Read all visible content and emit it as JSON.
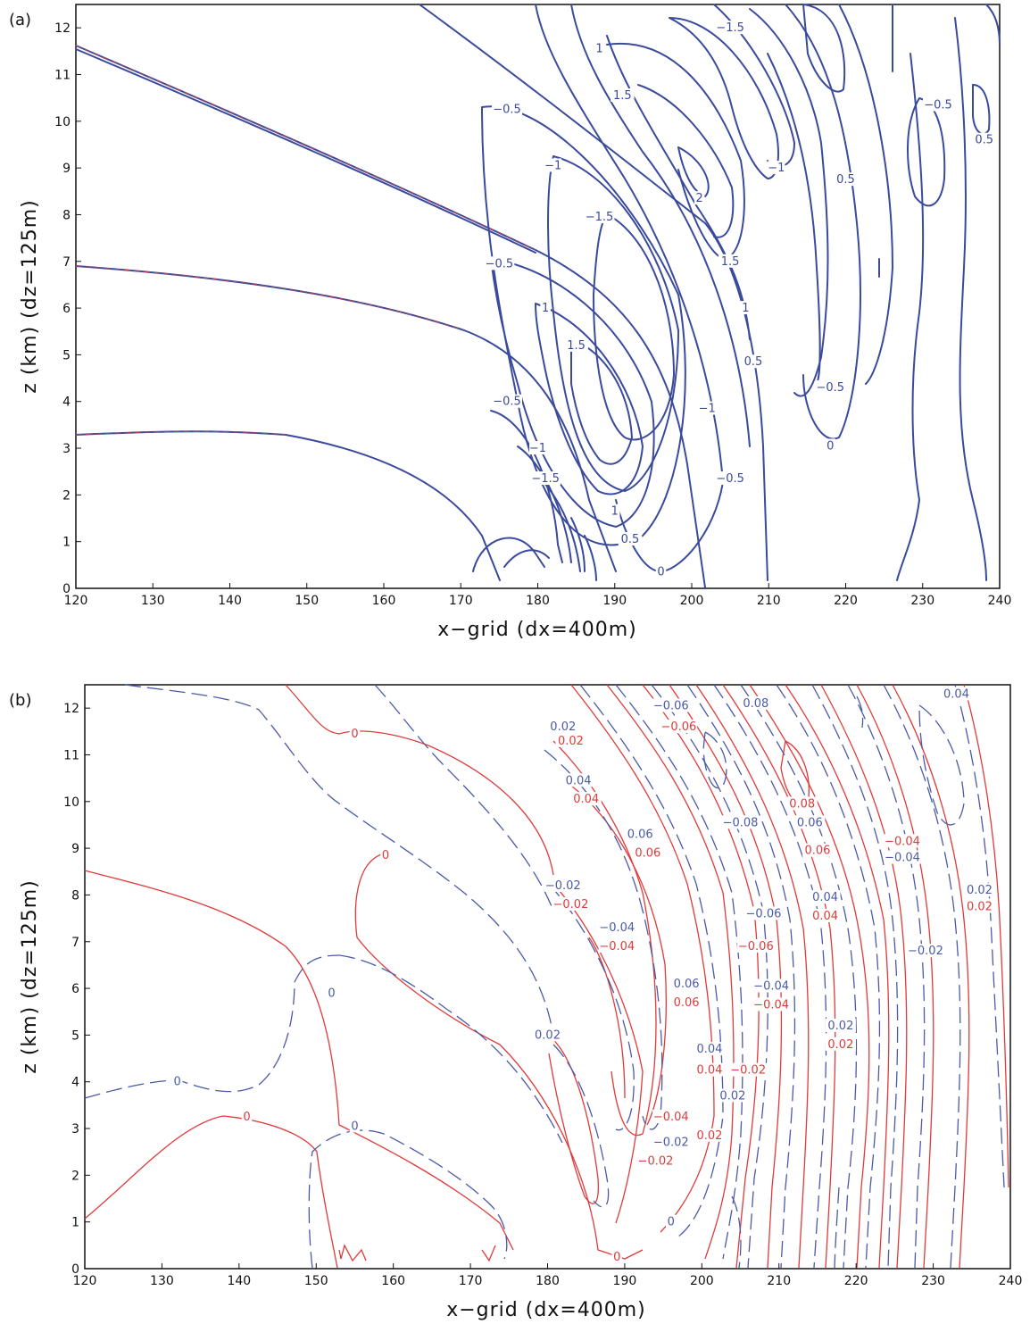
{
  "chart_data": [
    {
      "type": "contour",
      "panel_label": "(a)",
      "xlabel": "x−grid (dx=400m)",
      "ylabel": "z (km) (dz=125m)",
      "xlim": [
        120,
        240
      ],
      "ylim": [
        0,
        12.5
      ],
      "xticks": [
        120,
        130,
        140,
        150,
        160,
        170,
        180,
        190,
        200,
        210,
        220,
        230,
        240
      ],
      "yticks": [
        0,
        1,
        2,
        3,
        4,
        5,
        6,
        7,
        8,
        9,
        10,
        11,
        12
      ],
      "colors": {
        "solid": "#3a4a9c",
        "overlay_red": "#e03a3a",
        "overlay_green": "#3aa060"
      },
      "contour_labels": [
        {
          "x": 196,
          "y": 0.35,
          "text": "0"
        },
        {
          "x": 218,
          "y": 3.05,
          "text": "0"
        },
        {
          "x": 192,
          "y": 1.05,
          "text": "0.5"
        },
        {
          "x": 190,
          "y": 1.65,
          "text": "1"
        },
        {
          "x": 185,
          "y": 5.2,
          "text": "1.5"
        },
        {
          "x": 176,
          "y": 4.0,
          "text": "−0.5"
        },
        {
          "x": 175,
          "y": 6.95,
          "text": "−0.5"
        },
        {
          "x": 176,
          "y": 10.25,
          "text": "−0.5"
        },
        {
          "x": 180,
          "y": 3.0,
          "text": "−1"
        },
        {
          "x": 182,
          "y": 9.05,
          "text": "−1"
        },
        {
          "x": 181,
          "y": 2.35,
          "text": "−1.5"
        },
        {
          "x": 188,
          "y": 7.95,
          "text": "−1.5"
        },
        {
          "x": 181,
          "y": 6.0,
          "text": "1"
        },
        {
          "x": 191,
          "y": 10.55,
          "text": "1.5"
        },
        {
          "x": 188,
          "y": 11.55,
          "text": "1"
        },
        {
          "x": 201,
          "y": 8.35,
          "text": "2"
        },
        {
          "x": 205,
          "y": 7.0,
          "text": "1.5"
        },
        {
          "x": 207,
          "y": 6.0,
          "text": "1"
        },
        {
          "x": 208,
          "y": 4.85,
          "text": "0.5"
        },
        {
          "x": 202,
          "y": 3.85,
          "text": "−1"
        },
        {
          "x": 205,
          "y": 2.35,
          "text": "−0.5"
        },
        {
          "x": 211,
          "y": 9.0,
          "text": "−1"
        },
        {
          "x": 205,
          "y": 12.0,
          "text": "−1.5"
        },
        {
          "x": 218,
          "y": 4.3,
          "text": "−0.5"
        },
        {
          "x": 220,
          "y": 8.75,
          "text": "0.5"
        },
        {
          "x": 232,
          "y": 10.35,
          "text": "−0.5"
        },
        {
          "x": 238,
          "y": 9.6,
          "text": "0.5"
        }
      ]
    },
    {
      "type": "contour",
      "panel_label": "(b)",
      "xlabel": "x−grid (dx=400m)",
      "ylabel": "z (km) (dz=125m)",
      "xlim": [
        120,
        240
      ],
      "ylim": [
        0,
        12.5
      ],
      "xticks": [
        120,
        130,
        140,
        150,
        160,
        170,
        180,
        190,
        200,
        210,
        220,
        230,
        240
      ],
      "yticks": [
        0,
        1,
        2,
        3,
        4,
        5,
        6,
        7,
        8,
        9,
        10,
        11,
        12
      ],
      "colors": {
        "solid": "#e03a3a",
        "dashed": "#4a5aa8"
      },
      "contour_labels_solid": [
        {
          "x": 155,
          "y": 11.45,
          "text": "0"
        },
        {
          "x": 159,
          "y": 8.85,
          "text": "0"
        },
        {
          "x": 141,
          "y": 3.25,
          "text": "0"
        },
        {
          "x": 183,
          "y": 11.3,
          "text": "0.02"
        },
        {
          "x": 185,
          "y": 10.05,
          "text": "0.04"
        },
        {
          "x": 193,
          "y": 8.9,
          "text": "0.06"
        },
        {
          "x": 183,
          "y": 7.8,
          "text": "−0.02"
        },
        {
          "x": 189,
          "y": 6.9,
          "text": "−0.04"
        },
        {
          "x": 197,
          "y": 11.6,
          "text": "−0.06"
        },
        {
          "x": 213,
          "y": 9.95,
          "text": "0.08"
        },
        {
          "x": 215,
          "y": 8.95,
          "text": "0.06"
        },
        {
          "x": 226,
          "y": 9.15,
          "text": "−0.04"
        },
        {
          "x": 216,
          "y": 7.55,
          "text": "0.04"
        },
        {
          "x": 207,
          "y": 6.9,
          "text": "−0.06"
        },
        {
          "x": 209,
          "y": 5.65,
          "text": "−0.04"
        },
        {
          "x": 198,
          "y": 5.7,
          "text": "0.06"
        },
        {
          "x": 201,
          "y": 4.25,
          "text": "0.04"
        },
        {
          "x": 206,
          "y": 4.25,
          "text": "−0.02"
        },
        {
          "x": 196,
          "y": 3.25,
          "text": "−0.04"
        },
        {
          "x": 201,
          "y": 2.85,
          "text": "0.02"
        },
        {
          "x": 194,
          "y": 2.3,
          "text": "−0.02"
        },
        {
          "x": 218,
          "y": 4.8,
          "text": "0.02"
        },
        {
          "x": 236,
          "y": 7.75,
          "text": "0.02"
        },
        {
          "x": 189,
          "y": 0.25,
          "text": "0"
        }
      ],
      "contour_labels_dashed": [
        {
          "x": 152,
          "y": 5.9,
          "text": "0"
        },
        {
          "x": 132,
          "y": 4.0,
          "text": "0"
        },
        {
          "x": 155,
          "y": 3.05,
          "text": "0"
        },
        {
          "x": 182,
          "y": 11.6,
          "text": "0.02"
        },
        {
          "x": 184,
          "y": 10.45,
          "text": "0.04"
        },
        {
          "x": 192,
          "y": 9.3,
          "text": "0.06"
        },
        {
          "x": 182,
          "y": 8.2,
          "text": "−0.02"
        },
        {
          "x": 189,
          "y": 7.3,
          "text": "−0.04"
        },
        {
          "x": 196,
          "y": 12.05,
          "text": "−0.06"
        },
        {
          "x": 207,
          "y": 12.1,
          "text": "0.08"
        },
        {
          "x": 205,
          "y": 9.55,
          "text": "−0.08"
        },
        {
          "x": 208,
          "y": 7.6,
          "text": "−0.06"
        },
        {
          "x": 214,
          "y": 9.55,
          "text": "0.06"
        },
        {
          "x": 216,
          "y": 7.95,
          "text": "0.04"
        },
        {
          "x": 226,
          "y": 8.8,
          "text": "−0.04"
        },
        {
          "x": 209,
          "y": 6.05,
          "text": "−0.04"
        },
        {
          "x": 198,
          "y": 6.1,
          "text": "0.06"
        },
        {
          "x": 201,
          "y": 4.7,
          "text": "0.04"
        },
        {
          "x": 204,
          "y": 3.7,
          "text": "0.02"
        },
        {
          "x": 196,
          "y": 2.7,
          "text": "−0.02"
        },
        {
          "x": 218,
          "y": 5.2,
          "text": "0.02"
        },
        {
          "x": 229,
          "y": 6.8,
          "text": "−0.02"
        },
        {
          "x": 236,
          "y": 8.1,
          "text": "0.02"
        },
        {
          "x": 233,
          "y": 12.3,
          "text": "0.04"
        },
        {
          "x": 180,
          "y": 5.0,
          "text": "0.02"
        },
        {
          "x": 196,
          "y": 1.0,
          "text": "0"
        }
      ]
    }
  ]
}
